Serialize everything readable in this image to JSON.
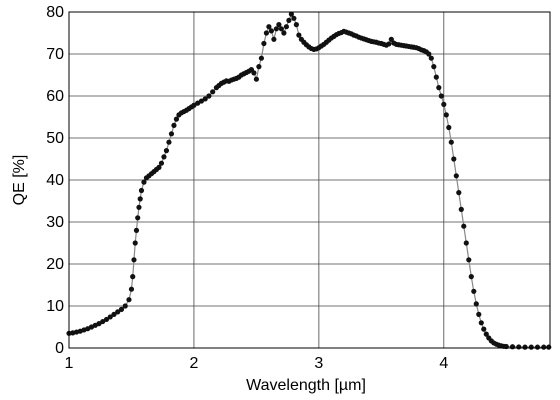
{
  "chart_data": {
    "type": "scatter",
    "title": "",
    "xlabel": "Wavelength [µm]",
    "ylabel": "QE [%]",
    "xlim": [
      1,
      4.85
    ],
    "ylim": [
      0,
      80
    ],
    "xticks": [
      1,
      2,
      3,
      4
    ],
    "yticks": [
      0,
      10,
      20,
      30,
      40,
      50,
      60,
      70,
      80
    ],
    "grid": true,
    "legend": "none",
    "colors": {
      "points": "#111111",
      "line": "#888888",
      "grid": "#444444"
    },
    "series": [
      {
        "x": [
          1.0,
          1.03,
          1.06,
          1.09,
          1.12,
          1.15,
          1.18,
          1.21,
          1.24,
          1.27,
          1.3,
          1.33,
          1.36,
          1.39,
          1.42,
          1.45,
          1.48,
          1.5,
          1.51,
          1.52,
          1.53,
          1.54,
          1.55,
          1.56,
          1.57,
          1.58,
          1.6,
          1.62,
          1.64,
          1.66,
          1.68,
          1.7,
          1.72,
          1.74,
          1.76,
          1.78,
          1.8,
          1.82,
          1.84,
          1.86,
          1.88,
          1.9,
          1.92,
          1.94,
          1.96,
          1.98,
          2.0,
          2.03,
          2.06,
          2.09,
          2.12,
          2.15,
          2.18,
          2.2,
          2.22,
          2.24,
          2.26,
          2.28,
          2.3,
          2.32,
          2.34,
          2.36,
          2.38,
          2.4,
          2.42,
          2.44,
          2.46,
          2.48,
          2.5,
          2.52,
          2.54,
          2.56,
          2.58,
          2.6,
          2.62,
          2.64,
          2.66,
          2.68,
          2.7,
          2.72,
          2.74,
          2.76,
          2.78,
          2.8,
          2.82,
          2.84,
          2.86,
          2.88,
          2.9,
          2.92,
          2.94,
          2.96,
          2.98,
          3.0,
          3.02,
          3.04,
          3.06,
          3.08,
          3.1,
          3.12,
          3.14,
          3.16,
          3.18,
          3.2,
          3.22,
          3.24,
          3.26,
          3.28,
          3.3,
          3.32,
          3.34,
          3.36,
          3.38,
          3.4,
          3.42,
          3.44,
          3.46,
          3.48,
          3.5,
          3.52,
          3.54,
          3.56,
          3.58,
          3.6,
          3.62,
          3.64,
          3.66,
          3.68,
          3.7,
          3.72,
          3.74,
          3.76,
          3.78,
          3.8,
          3.82,
          3.84,
          3.86,
          3.88,
          3.9,
          3.92,
          3.94,
          3.96,
          3.98,
          4.0,
          4.02,
          4.04,
          4.06,
          4.08,
          4.1,
          4.12,
          4.14,
          4.16,
          4.18,
          4.2,
          4.22,
          4.24,
          4.26,
          4.28,
          4.3,
          4.32,
          4.34,
          4.36,
          4.38,
          4.4,
          4.42,
          4.44,
          4.46,
          4.48,
          4.5,
          4.55,
          4.6,
          4.65,
          4.7,
          4.75,
          4.8,
          4.84
        ],
        "y": [
          3.5,
          3.6,
          3.8,
          4.0,
          4.3,
          4.6,
          5.0,
          5.4,
          5.8,
          6.3,
          6.8,
          7.4,
          8.0,
          8.6,
          9.2,
          10.0,
          11.5,
          14.0,
          17.0,
          21.0,
          25.0,
          28.0,
          31.0,
          33.5,
          35.5,
          37.5,
          39.5,
          40.5,
          41.0,
          41.5,
          42.0,
          42.5,
          43.0,
          44.0,
          45.5,
          47.0,
          49.0,
          51.0,
          53.0,
          54.5,
          55.5,
          56.0,
          56.3,
          56.6,
          57.0,
          57.4,
          57.8,
          58.3,
          58.8,
          59.3,
          60.0,
          61.0,
          62.0,
          62.5,
          63.0,
          63.3,
          63.6,
          63.5,
          63.8,
          64.0,
          64.2,
          64.5,
          65.0,
          65.3,
          65.6,
          65.9,
          66.3,
          65.5,
          64.0,
          67.0,
          69.0,
          72.5,
          75.0,
          76.5,
          75.5,
          73.5,
          76.0,
          77.0,
          76.0,
          75.0,
          76.5,
          78.0,
          79.5,
          78.5,
          77.0,
          74.5,
          73.5,
          72.8,
          72.2,
          71.7,
          71.3,
          71.1,
          71.2,
          71.5,
          71.9,
          72.3,
          72.8,
          73.3,
          73.8,
          74.2,
          74.6,
          74.9,
          75.1,
          75.4,
          75.2,
          75.0,
          74.8,
          74.5,
          74.3,
          74.0,
          73.8,
          73.6,
          73.4,
          73.2,
          73.0,
          72.9,
          72.8,
          72.6,
          72.5,
          72.3,
          72.1,
          72.4,
          73.5,
          72.6,
          72.3,
          72.2,
          72.1,
          72.0,
          71.9,
          71.8,
          71.7,
          71.6,
          71.5,
          71.3,
          71.0,
          70.8,
          70.5,
          70.0,
          69.0,
          67.0,
          64.5,
          62.0,
          60.0,
          58.0,
          55.5,
          52.5,
          49.0,
          45.0,
          41.0,
          37.0,
          33.0,
          29.0,
          25.0,
          21.0,
          17.0,
          13.5,
          10.5,
          8.0,
          6.0,
          4.5,
          3.3,
          2.4,
          1.7,
          1.2,
          0.9,
          0.7,
          0.5,
          0.4,
          0.35,
          0.3,
          0.25,
          0.2,
          0.2,
          0.2,
          0.2,
          0.2
        ]
      }
    ]
  }
}
